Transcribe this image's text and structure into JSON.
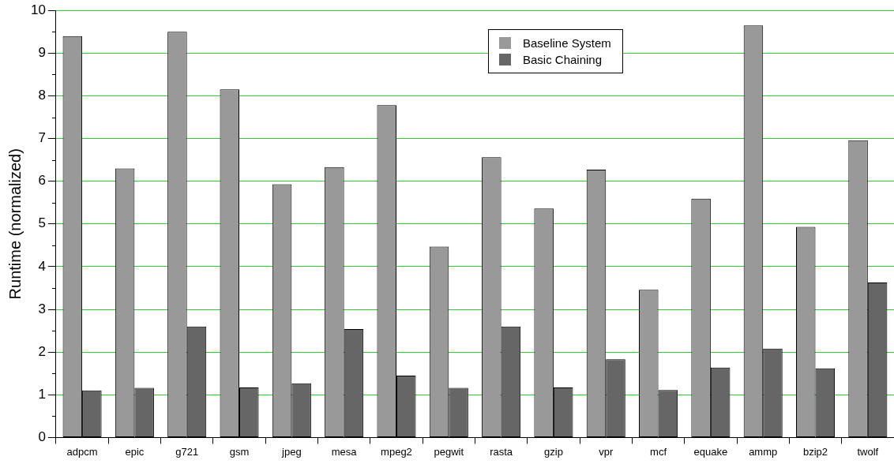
{
  "chart_data": {
    "type": "bar",
    "ylabel": "Runtime (normalized)",
    "categories": [
      "adpcm",
      "epic",
      "g721",
      "gsm",
      "jpeg",
      "mesa",
      "mpeg2",
      "pegwit",
      "rasta",
      "gzip",
      "vpr",
      "mcf",
      "equake",
      "ammp",
      "bzip2",
      "twolf"
    ],
    "series": [
      {
        "name": "Baseline System",
        "color": "#999999",
        "values": [
          9.4,
          6.3,
          9.5,
          8.15,
          5.93,
          6.33,
          7.78,
          4.47,
          6.56,
          5.36,
          6.27,
          3.46,
          5.59,
          9.65,
          4.93,
          6.96
        ]
      },
      {
        "name": "Basic Chaining",
        "color": "#666666",
        "values": [
          1.1,
          1.16,
          2.6,
          1.17,
          1.27,
          2.54,
          1.45,
          1.16,
          2.6,
          1.17,
          1.83,
          1.11,
          1.64,
          2.08,
          1.62,
          3.63
        ]
      }
    ],
    "ylim": [
      0,
      10
    ],
    "yticks": [
      0,
      1,
      2,
      3,
      4,
      5,
      6,
      7,
      8,
      9,
      10
    ],
    "grid": "y",
    "legend": "top"
  }
}
